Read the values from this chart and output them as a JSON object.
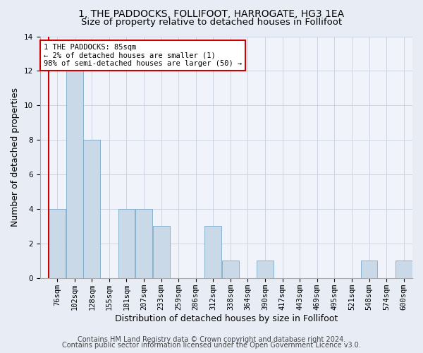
{
  "title1": "1, THE PADDOCKS, FOLLIFOOT, HARROGATE, HG3 1EA",
  "title2": "Size of property relative to detached houses in Follifoot",
  "xlabel": "Distribution of detached houses by size in Follifoot",
  "ylabel": "Number of detached properties",
  "categories": [
    "76sqm",
    "102sqm",
    "128sqm",
    "155sqm",
    "181sqm",
    "207sqm",
    "233sqm",
    "259sqm",
    "286sqm",
    "312sqm",
    "338sqm",
    "364sqm",
    "390sqm",
    "417sqm",
    "443sqm",
    "469sqm",
    "495sqm",
    "521sqm",
    "548sqm",
    "574sqm",
    "600sqm"
  ],
  "values": [
    4,
    12,
    8,
    0,
    4,
    4,
    3,
    0,
    0,
    3,
    1,
    0,
    1,
    0,
    0,
    0,
    0,
    0,
    1,
    0,
    1
  ],
  "bar_color": "#c9d9e8",
  "bar_edge_color": "#7aaaca",
  "highlight_line_color": "#cc0000",
  "annotation_text": "1 THE PADDOCKS: 85sqm\n← 2% of detached houses are smaller (1)\n98% of semi-detached houses are larger (50) →",
  "annotation_box_color": "#cc0000",
  "ylim": [
    0,
    14
  ],
  "yticks": [
    0,
    2,
    4,
    6,
    8,
    10,
    12,
    14
  ],
  "footer1": "Contains HM Land Registry data © Crown copyright and database right 2024.",
  "footer2": "Contains public sector information licensed under the Open Government Licence v3.0.",
  "bg_color": "#e8edf5",
  "plot_bg_color": "#f0f4fa",
  "grid_color": "#c8d0de",
  "title_fontsize": 10,
  "subtitle_fontsize": 9.5,
  "axis_label_fontsize": 9,
  "tick_fontsize": 7.5,
  "footer_fontsize": 7
}
